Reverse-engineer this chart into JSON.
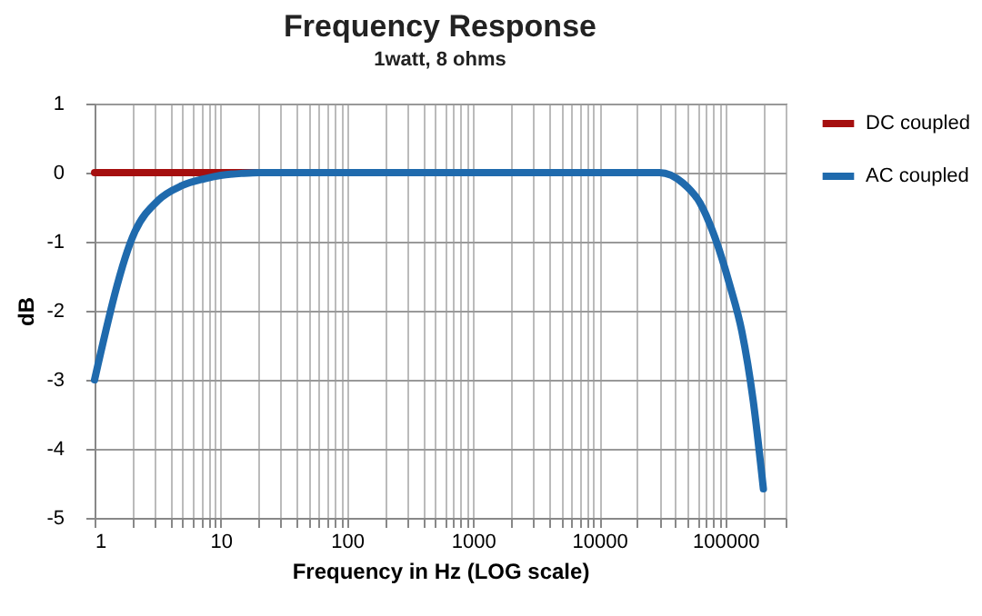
{
  "chart_data": {
    "type": "line",
    "title": "Frequency Response",
    "subtitle": "1watt, 8 ohms",
    "xlabel": "Frequency in Hz (LOG scale)",
    "ylabel": "dB",
    "log": "x",
    "grid": true,
    "legend": "right",
    "line_style": "solid",
    "xlim": [
      1,
      300000
    ],
    "ylim": [
      -5,
      1
    ],
    "xticks": [
      1,
      {
        "value": 2,
        "label": null
      },
      {
        "value": 3,
        "label": null
      },
      {
        "value": 4,
        "label": null
      },
      {
        "value": 5,
        "label": null
      },
      {
        "value": 6,
        "label": null
      },
      {
        "value": 7,
        "label": null
      },
      {
        "value": 8,
        "label": null
      },
      {
        "value": 9,
        "label": null
      },
      10,
      {
        "value": 20,
        "label": null
      },
      {
        "value": 30,
        "label": null
      },
      {
        "value": 40,
        "label": null
      },
      {
        "value": 50,
        "label": null
      },
      {
        "value": 60,
        "label": null
      },
      {
        "value": 70,
        "label": null
      },
      {
        "value": 80,
        "label": null
      },
      {
        "value": 90,
        "label": null
      },
      100,
      {
        "value": 200,
        "label": null
      },
      {
        "value": 300,
        "label": null
      },
      {
        "value": 400,
        "label": null
      },
      {
        "value": 500,
        "label": null
      },
      {
        "value": 600,
        "label": null
      },
      {
        "value": 700,
        "label": null
      },
      {
        "value": 800,
        "label": null
      },
      {
        "value": 900,
        "label": null
      },
      1000,
      {
        "value": 2000,
        "label": null
      },
      {
        "value": 3000,
        "label": null
      },
      {
        "value": 4000,
        "label": null
      },
      {
        "value": 5000,
        "label": null
      },
      {
        "value": 6000,
        "label": null
      },
      {
        "value": 7000,
        "label": null
      },
      {
        "value": 8000,
        "label": null
      },
      {
        "value": 9000,
        "label": null
      },
      10000,
      {
        "value": 20000,
        "label": null
      },
      {
        "value": 30000,
        "label": null
      },
      {
        "value": 40000,
        "label": null
      },
      {
        "value": 50000,
        "label": null
      },
      {
        "value": 60000,
        "label": null
      },
      {
        "value": 70000,
        "label": null
      },
      {
        "value": 80000,
        "label": null
      },
      {
        "value": 90000,
        "label": null
      },
      100000,
      {
        "value": 200000,
        "label": null
      },
      {
        "value": 300000,
        "label": null
      }
    ],
    "yticks": [
      -5,
      -4,
      -3,
      -2,
      -1,
      0,
      1
    ],
    "series": [
      {
        "name": "DC coupled",
        "color": "#a50f0f",
        "x": [
          1,
          2,
          5,
          10,
          15,
          20
        ],
        "values": [
          0,
          0,
          0,
          0,
          0,
          0
        ]
      },
      {
        "name": "AC coupled",
        "color": "#1f6aad",
        "x": [
          1,
          2.07,
          3.2,
          4.9,
          7.4,
          10,
          15,
          20,
          1000,
          20000,
          30000,
          46000,
          63000,
          83000,
          108000,
          135000,
          166000,
          200000
        ],
        "values": [
          -3,
          -0.87,
          -0.4,
          -0.19,
          -0.09,
          -0.04,
          -0.01,
          0,
          0,
          0,
          0,
          -0.15,
          -0.44,
          -0.95,
          -1.62,
          -2.3,
          -3.3,
          -4.58
        ]
      }
    ]
  }
}
